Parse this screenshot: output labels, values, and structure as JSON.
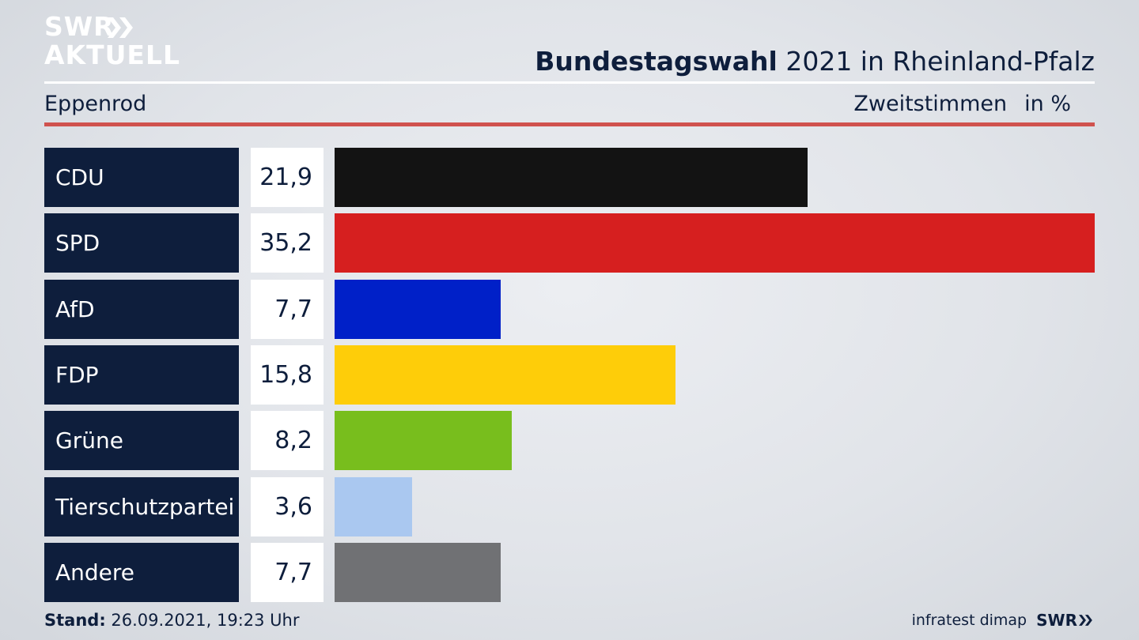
{
  "branding": {
    "logo_line1": "SWR",
    "logo_line2": "AKTUELL",
    "source": "infratest dimap",
    "footer_logo": "SWR"
  },
  "header": {
    "title_bold": "Bundestagswahl",
    "title_rest": " 2021 in Rheinland-Pfalz",
    "location": "Eppenrod",
    "measure": "Zweitstimmen",
    "unit": "in %"
  },
  "footer": {
    "stand_label": "Stand:",
    "stand_value": " 26.09.2021, 19:23 Uhr"
  },
  "chart_data": {
    "type": "bar",
    "orientation": "horizontal",
    "title": "Bundestagswahl 2021 in Rheinland-Pfalz",
    "categories": [
      "CDU",
      "SPD",
      "AfD",
      "FDP",
      "Grüne",
      "Tierschutzpartei",
      "Andere"
    ],
    "values": [
      21.9,
      35.2,
      7.7,
      15.8,
      8.2,
      3.6,
      7.7
    ],
    "value_labels": [
      "21,9",
      "35,2",
      "7,7",
      "15,8",
      "8,2",
      "3,6",
      "7,7"
    ],
    "colors": [
      "#131313",
      "#d61f1f",
      "#0020c8",
      "#fecd09",
      "#78be1d",
      "#aac8f0",
      "#707174"
    ],
    "xlim": [
      0,
      35.2
    ],
    "grid": false,
    "legend": "none"
  }
}
